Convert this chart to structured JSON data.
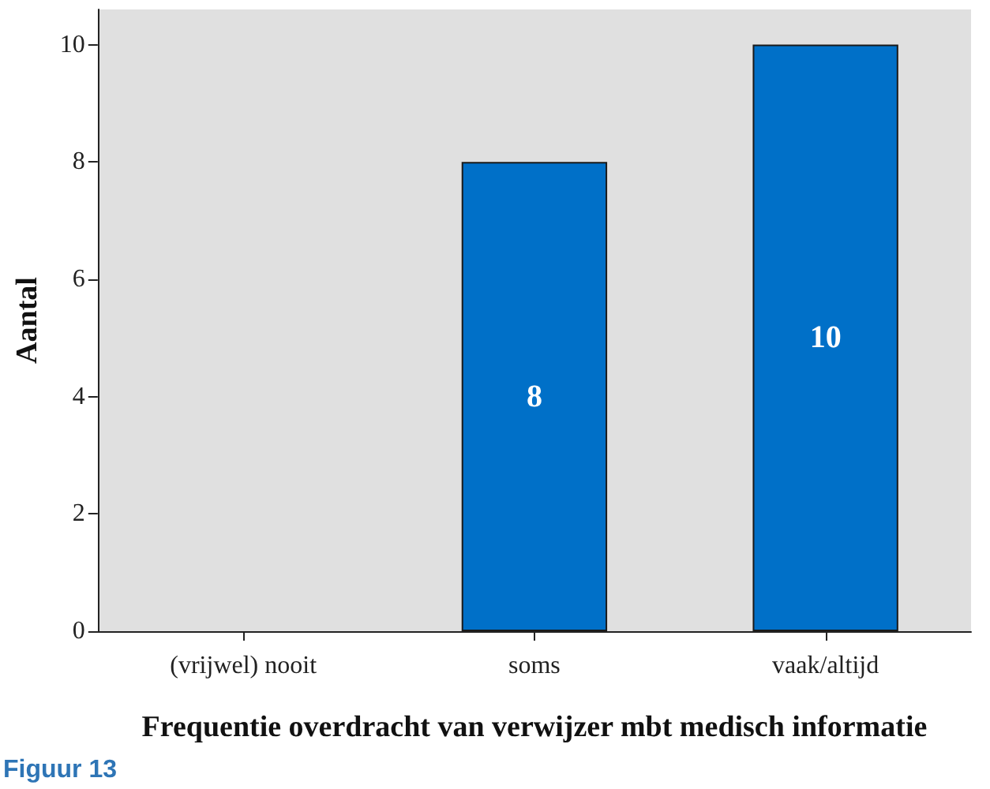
{
  "chart_data": {
    "type": "bar",
    "xlabel": "Frequentie overdracht van verwijzer mbt medisch informatie",
    "ylabel": "Aantal",
    "categories": [
      "(vrijwel) nooit",
      "soms",
      "vaak/altijd"
    ],
    "values": [
      0,
      8,
      10
    ],
    "value_labels": [
      null,
      "8",
      "10"
    ],
    "color": "#0070c8",
    "ylim": [
      0,
      10.6
    ],
    "yticks": [
      0,
      2,
      4,
      6,
      8,
      10
    ],
    "grid": false,
    "annotations": [
      "Figuur 13"
    ]
  }
}
